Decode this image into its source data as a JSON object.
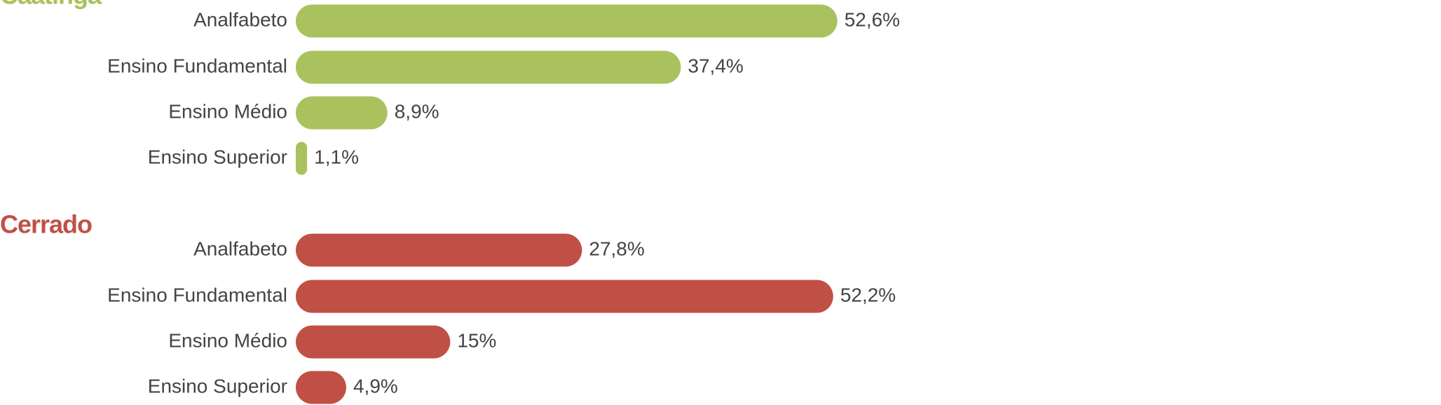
{
  "chart_data": [
    {
      "type": "bar",
      "orientation": "horizontal",
      "title": "Caatinga",
      "color": "#a9c25d",
      "categories": [
        "Analfabeto",
        "Ensino Fundamental",
        "Ensino Médio",
        "Ensino Superior"
      ],
      "values": [
        52.6,
        37.4,
        8.9,
        1.1
      ],
      "value_labels": [
        "52,6%",
        "37,4%",
        "8,9%",
        "1,1%"
      ]
    },
    {
      "type": "bar",
      "orientation": "horizontal",
      "title": "Cerrado",
      "color": "#c05046",
      "categories": [
        "Analfabeto",
        "Ensino Fundamental",
        "Ensino Médio",
        "Ensino Superior"
      ],
      "values": [
        27.8,
        52.2,
        15,
        4.9
      ],
      "value_labels": [
        "27,8%",
        "52,2%",
        "15%",
        "4,9%"
      ]
    }
  ]
}
